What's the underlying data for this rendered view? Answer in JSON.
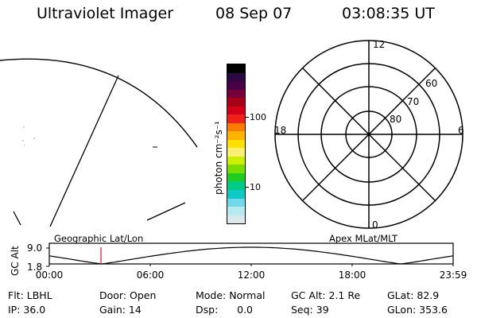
{
  "header": {
    "title": "Ultraviolet Imager",
    "date": "08 Sep 07",
    "time": "03:08:35 UT"
  },
  "colorbar": {
    "label": "photon cm⁻²s⁻¹",
    "ticks": [
      "100",
      "10"
    ],
    "colors": [
      "#000000",
      "#2a0a40",
      "#4a0046",
      "#75003a",
      "#a80016",
      "#d4001a",
      "#f0201a",
      "#ff7a00",
      "#ffb200",
      "#ffe000",
      "#f8f070",
      "#ccee00",
      "#7add00",
      "#20cc20",
      "#00cc88",
      "#10c8c8",
      "#70d8e8",
      "#b8e8f0",
      "#d8e8ec"
    ]
  },
  "polar": {
    "mlt_labels": {
      "top": "12",
      "left": "18",
      "right": "6",
      "bottom": "0"
    },
    "lat_labels": [
      "60",
      "70",
      "80"
    ]
  },
  "altitude_panel": {
    "ylabel": "GC Alt",
    "yticks": [
      "9.0",
      "1.8"
    ],
    "left_label": "Geographic Lat/Lon",
    "right_label": "Apex  MLat/MLT",
    "xticks": [
      "00:00",
      "06:00",
      "12:00",
      "18:00",
      "23:59"
    ],
    "marker_color": "#d81030"
  },
  "info": {
    "row1": [
      "Flt: LBHL",
      "Door: Open",
      "Mode: Normal",
      "GC Alt: 2.1 Re",
      "GLat:  82.9"
    ],
    "row2": [
      "IP: 36.0",
      "Gain: 14",
      "Dsp:      0.0",
      "Seq: 39",
      "GLon: 353.6"
    ]
  }
}
